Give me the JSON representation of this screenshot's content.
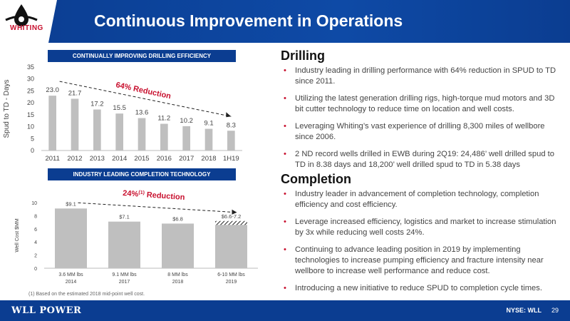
{
  "header": {
    "title": "Continuous Improvement in Operations",
    "logo": "WHITING"
  },
  "charts": {
    "drilling_label": "CONTINUALLY IMPROVING DRILLING EFFICIENCY",
    "completion_label": "INDUSTRY LEADING COMPLETION TECHNOLOGY",
    "drilling_annotation": "64% Reduction",
    "completion_annotation_pre": "24%",
    "completion_annotation_sup": "(1)",
    "completion_annotation_post": " Reduction"
  },
  "chart_data": [
    {
      "type": "bar",
      "title": "",
      "ylabel": "Spud to TD - Days",
      "xlabel": "",
      "categories": [
        "2011",
        "2012",
        "2013",
        "2014",
        "2015",
        "2016",
        "2017",
        "2018",
        "1H19"
      ],
      "values": [
        23.0,
        21.7,
        17.2,
        15.5,
        13.6,
        11.2,
        10.2,
        9.1,
        8.3
      ],
      "value_labels": [
        "23.0",
        "21.7",
        "17.2",
        "15.5",
        "13.6",
        "11.2",
        "10.2",
        "9.1",
        "8.3"
      ],
      "ylim": [
        0,
        35
      ],
      "yticks": [
        "0",
        "5",
        "10",
        "15",
        "20",
        "25",
        "30",
        "35"
      ],
      "bar_color": "#bfbfbf",
      "annotation_color": "#c8102e"
    },
    {
      "type": "bar",
      "title": "",
      "ylabel": "Well Cost $MM",
      "xlabel": "",
      "categories": [
        "3.6 MM lbs",
        "9.1 MM lbs",
        "8 MM lbs",
        "6-10 MM lbs"
      ],
      "categories_line2": [
        "2014",
        "2017",
        "2018",
        "2019"
      ],
      "values": [
        9.1,
        7.1,
        6.8,
        6.9
      ],
      "value_labels": [
        "$9.1",
        "$7.1",
        "$6.8",
        "$6.6-7.2"
      ],
      "range_last": [
        6.6,
        7.2
      ],
      "ylim": [
        0,
        10
      ],
      "yticks": [
        "0",
        "2",
        "4",
        "6",
        "8",
        "10"
      ],
      "bar_color": "#bfbfbf"
    }
  ],
  "drilling": {
    "heading": "Drilling",
    "bullets": [
      "Industry leading in drilling performance with 64% reduction in SPUD to TD since 2011.",
      "Utilizing the latest generation drilling rigs, high-torque mud motors and 3D bit cutter technology to reduce time on location and well costs.",
      "Leveraging Whiting’s vast experience of drilling 8,300 miles of wellbore since 2006.",
      "2 ND record wells drilled in EWB during 2Q19: 24,486’ well drilled spud to TD in 8.38 days and 18,200’ well drilled spud to TD in 5.38 days"
    ]
  },
  "completion": {
    "heading": "Completion",
    "bullets": [
      "Industry leader in advancement of completion technology, completion efficiency and cost efficiency.",
      "Leverage increased efficiency, logistics and market to increase stimulation by 3x while reducing well costs 24%.",
      "Continuing to advance leading position in 2019 by implementing technologies to increase pumping efficiency and fracture intensity near wellbore to increase well performance and reduce cost.",
      "Introducing a new initiative to reduce SPUD to completion cycle times."
    ]
  },
  "bullet_char": "•",
  "footnote": "(1)   Based on the estimated 2018 mid-point well cost.",
  "footer": {
    "logo": "WLL POWER",
    "ticker": "NYSE: WLL",
    "page": "29"
  }
}
